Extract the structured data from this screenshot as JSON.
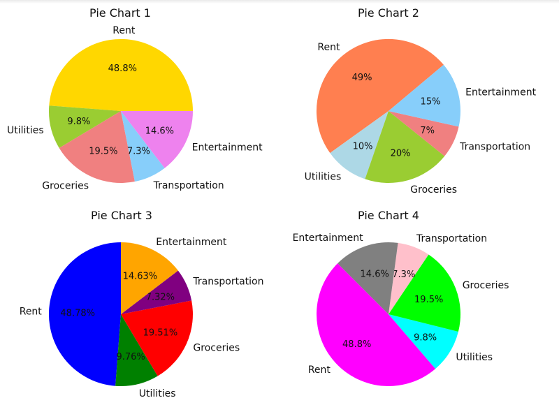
{
  "chart_data": [
    {
      "type": "pie",
      "title": "Pie Chart 1",
      "pct_format": "1dp",
      "start_angle": 0,
      "counterclock": true,
      "slices": [
        {
          "label": "Rent",
          "value": 48.8,
          "pct_text": "48.8%",
          "color": "#FFD700"
        },
        {
          "label": "Utilities",
          "value": 9.8,
          "pct_text": "9.8%",
          "color": "#9ACD32"
        },
        {
          "label": "Groceries",
          "value": 19.5,
          "pct_text": "19.5%",
          "color": "#F08080"
        },
        {
          "label": "Transportation",
          "value": 7.3,
          "pct_text": "7.3%",
          "color": "#87CEFA"
        },
        {
          "label": "Entertainment",
          "value": 14.6,
          "pct_text": "14.6%",
          "color": "#EE82EE"
        }
      ]
    },
    {
      "type": "pie",
      "title": "Pie Chart 2",
      "pct_format": "0dp",
      "start_angle": 40,
      "counterclock": true,
      "slices": [
        {
          "label": "Rent",
          "value": 48.8,
          "pct_text": "49%",
          "color": "#FF7F50"
        },
        {
          "label": "Utilities",
          "value": 9.8,
          "pct_text": "10%",
          "color": "#ADD8E6"
        },
        {
          "label": "Groceries",
          "value": 19.5,
          "pct_text": "20%",
          "color": "#9ACD32"
        },
        {
          "label": "Transportation",
          "value": 7.3,
          "pct_text": "7%",
          "color": "#F08080"
        },
        {
          "label": "Entertainment",
          "value": 14.6,
          "pct_text": "15%",
          "color": "#87CEFA"
        }
      ]
    },
    {
      "type": "pie",
      "title": "Pie Chart 3",
      "pct_format": "2dp",
      "start_angle": 90,
      "counterclock": true,
      "slices": [
        {
          "label": "Rent",
          "value": 48.78,
          "pct_text": "48.78%",
          "color": "#0000FF"
        },
        {
          "label": "Utilities",
          "value": 9.76,
          "pct_text": "9.76%",
          "color": "#008000"
        },
        {
          "label": "Groceries",
          "value": 19.51,
          "pct_text": "19.51%",
          "color": "#FF0000"
        },
        {
          "label": "Transportation",
          "value": 7.32,
          "pct_text": "7.32%",
          "color": "#800080"
        },
        {
          "label": "Entertainment",
          "value": 14.63,
          "pct_text": "14.63%",
          "color": "#FFA500"
        }
      ]
    },
    {
      "type": "pie",
      "title": "Pie Chart 4",
      "pct_format": "1dp",
      "start_angle": 135,
      "counterclock": true,
      "slices": [
        {
          "label": "Rent",
          "value": 48.8,
          "pct_text": "48.8%",
          "color": "#FF00FF"
        },
        {
          "label": "Utilities",
          "value": 9.8,
          "pct_text": "9.8%",
          "color": "#00FFFF"
        },
        {
          "label": "Groceries",
          "value": 19.5,
          "pct_text": "19.5%",
          "color": "#00FF00"
        },
        {
          "label": "Transportation",
          "value": 7.3,
          "pct_text": "7.3%",
          "color": "#FFC0CB"
        },
        {
          "label": "Entertainment",
          "value": 14.6,
          "pct_text": "14.6%",
          "color": "#808080"
        }
      ]
    }
  ]
}
